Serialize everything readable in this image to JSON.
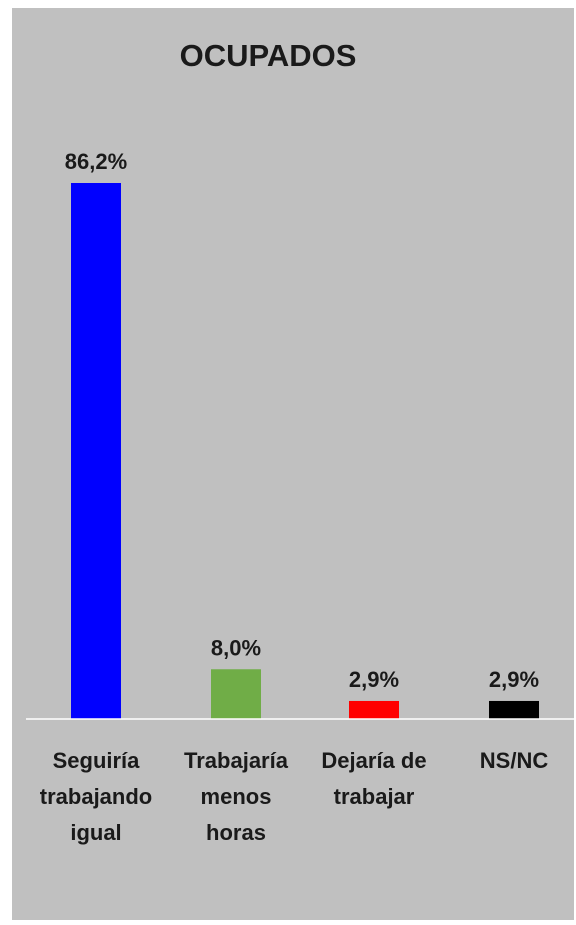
{
  "chart_data": {
    "type": "bar",
    "title": "OCUPADOS",
    "categories": [
      [
        "Seguiría",
        "trabajando",
        "igual"
      ],
      [
        "Trabajaría",
        "menos",
        "horas"
      ],
      [
        "Dejaría de",
        "trabajar"
      ],
      [
        "NS/NC"
      ]
    ],
    "values": [
      86.2,
      8.0,
      2.9,
      2.9
    ],
    "value_labels": [
      "86,2%",
      "8,0%",
      "2,9%",
      "2,9%"
    ],
    "colors": [
      "#0000ff",
      "#70ad47",
      "#ff0000",
      "#000000"
    ],
    "ylim": [
      0,
      86.2
    ],
    "grid": false,
    "legend": "none"
  }
}
